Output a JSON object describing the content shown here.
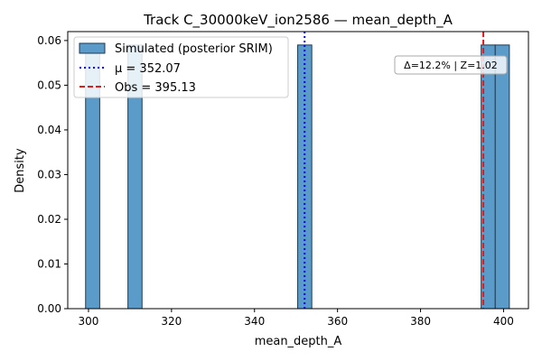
{
  "chart_data": {
    "type": "bar",
    "title": "Track C_30000keV_ion2586 — mean_depth_A",
    "xlabel": "mean_depth_A",
    "ylabel": "Density",
    "xlim": [
      295,
      406
    ],
    "ylim": [
      0,
      0.062
    ],
    "x_ticks": [
      300,
      320,
      340,
      360,
      380,
      400
    ],
    "y_ticks": [
      0.0,
      0.01,
      0.02,
      0.03,
      0.04,
      0.05,
      0.06
    ],
    "bins": [
      {
        "x0": 299.3,
        "x1": 302.7,
        "density": 0.059
      },
      {
        "x0": 309.5,
        "x1": 312.9,
        "density": 0.059
      },
      {
        "x0": 350.4,
        "x1": 353.8,
        "density": 0.059
      },
      {
        "x0": 394.6,
        "x1": 398.0,
        "density": 0.059
      },
      {
        "x0": 398.0,
        "x1": 401.4,
        "density": 0.059
      }
    ],
    "mu_line": {
      "value": 352.07,
      "label": "μ = 352.07",
      "color": "#0000ff"
    },
    "obs_line": {
      "value": 395.13,
      "label": "Obs = 395.13",
      "color": "#e41a1c"
    },
    "legend": {
      "placement": "top-left",
      "entries": [
        "Simulated (posterior SRIM)",
        "μ = 352.07",
        "Obs = 395.13"
      ]
    },
    "annotation": "Δ=12.2% | Z=1.02",
    "bar_color": "#5b9bc9",
    "bar_edge": "#1f3a50",
    "grid": false
  }
}
